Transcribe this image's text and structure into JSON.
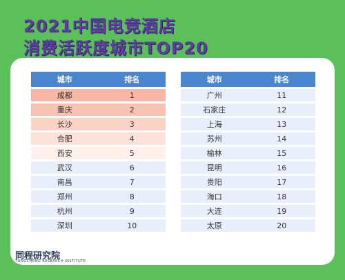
{
  "title": {
    "line1": "2021中国电竞酒店",
    "line2": "消费活跃度城市TOP20"
  },
  "table": {
    "headers": [
      "城市",
      "排名"
    ],
    "rows": [
      {
        "city": "成都",
        "rank": "1"
      },
      {
        "city": "重庆",
        "rank": "2"
      },
      {
        "city": "长沙",
        "rank": "3"
      },
      {
        "city": "合肥",
        "rank": "4"
      },
      {
        "city": "西安",
        "rank": "5"
      },
      {
        "city": "武汉",
        "rank": "6"
      },
      {
        "city": "南昌",
        "rank": "7"
      },
      {
        "city": "郑州",
        "rank": "8"
      },
      {
        "city": "杭州",
        "rank": "9"
      },
      {
        "city": "深圳",
        "rank": "10"
      },
      {
        "city": "广州",
        "rank": "11"
      },
      {
        "city": "石家庄",
        "rank": "12"
      },
      {
        "city": "上海",
        "rank": "13"
      },
      {
        "city": "苏州",
        "rank": "14"
      },
      {
        "city": "榆林",
        "rank": "15"
      },
      {
        "city": "昆明",
        "rank": "16"
      },
      {
        "city": "贵阳",
        "rank": "17"
      },
      {
        "city": "海口",
        "rank": "18"
      },
      {
        "city": "大连",
        "rank": "19"
      },
      {
        "city": "太原",
        "rank": "20"
      }
    ]
  },
  "brand": {
    "name": "同程研究院",
    "subtitle": "TONGCHENG RESEARCH INSTITUTE"
  },
  "colors": {
    "background": "#5bbf5a",
    "title": "#5b3f9a",
    "header": "#4a86cf",
    "row": "#e8effa",
    "top1": "#f7b6a6"
  }
}
